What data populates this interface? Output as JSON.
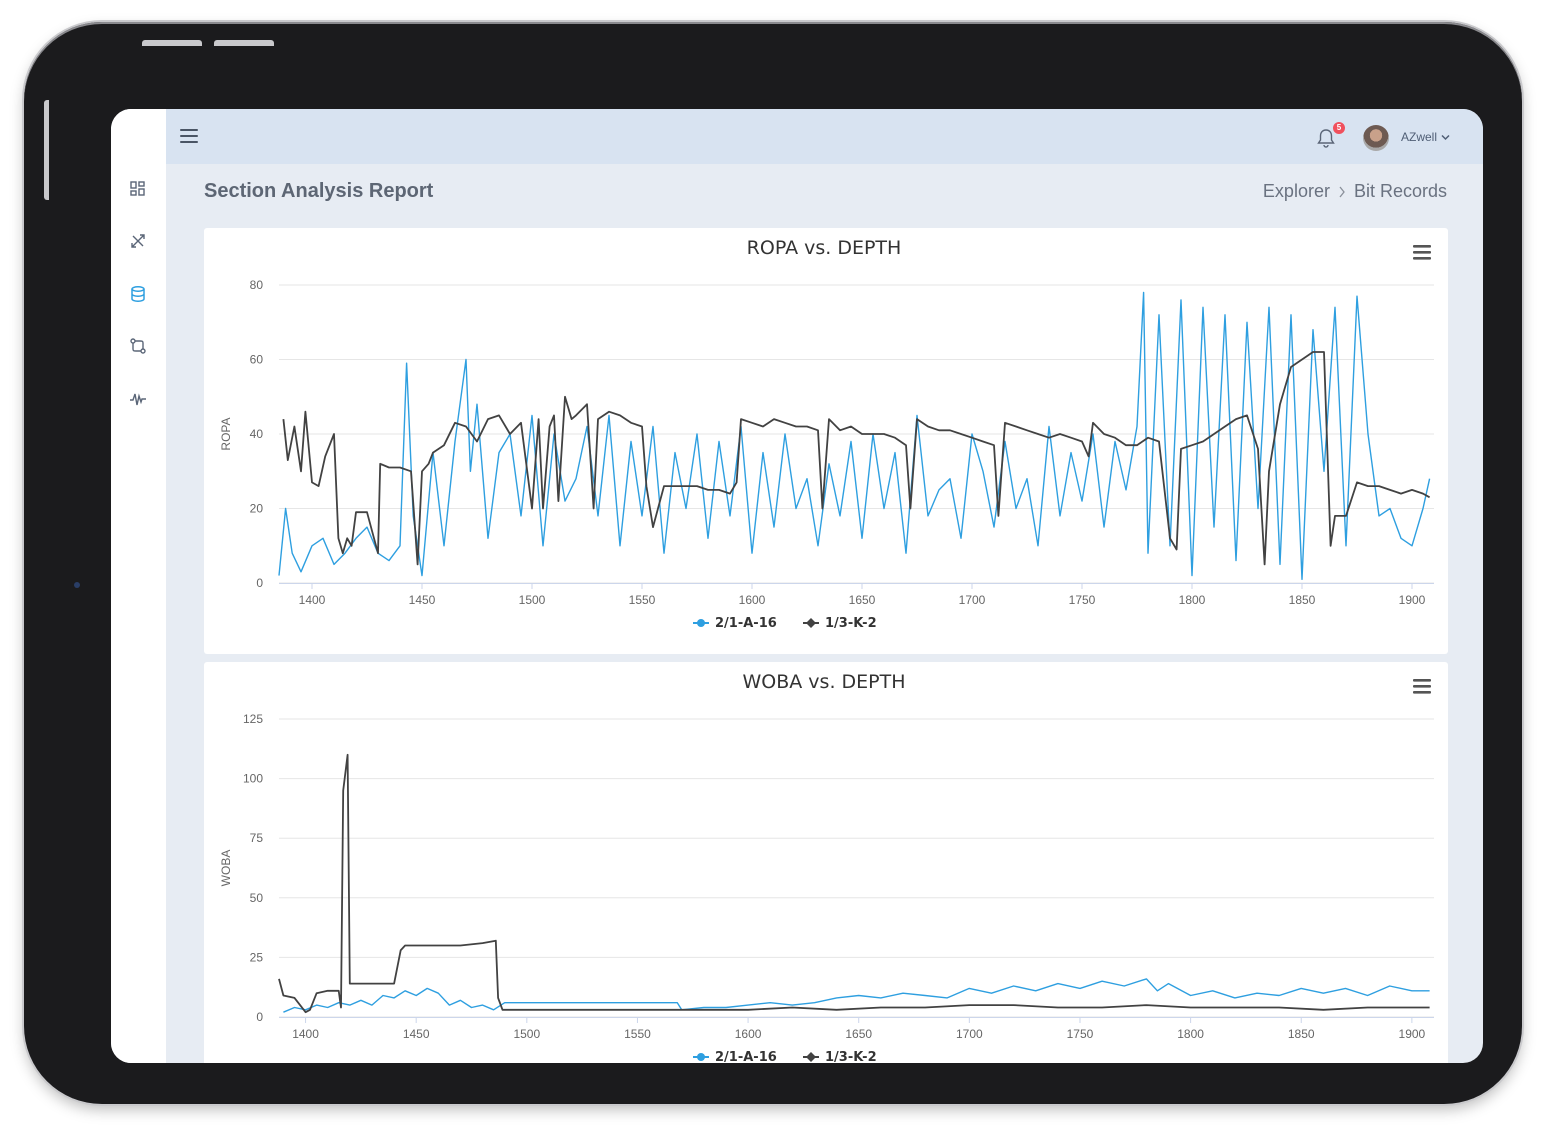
{
  "app": {
    "page_title": "Section Analysis Report",
    "breadcrumb": [
      "Explorer",
      "Bit Records"
    ],
    "user": "AZwell",
    "notifications_count": "5",
    "sidebar_icons": [
      "dashboard-icon",
      "tools-icon",
      "database-icon",
      "git-compare-icon",
      "activity-icon"
    ],
    "accent_color": "#2e9fe0",
    "badge_color": "#f0505d"
  },
  "chart_data": [
    {
      "type": "line",
      "title": "ROPA vs. DEPTH",
      "xlabel": "",
      "ylabel": "ROPA",
      "xlim": [
        1385,
        1910
      ],
      "ylim": [
        0,
        80
      ],
      "xticks": [
        1400,
        1450,
        1500,
        1550,
        1600,
        1650,
        1700,
        1750,
        1800,
        1850,
        1900
      ],
      "yticks": [
        0,
        20,
        40,
        60,
        80
      ],
      "legend_position": "bottom",
      "series": [
        {
          "name": "2/1-A-16",
          "color": "#2e9fe0",
          "x": [
            1385,
            1388,
            1391,
            1395,
            1400,
            1405,
            1410,
            1415,
            1420,
            1425,
            1430,
            1435,
            1440,
            1443,
            1446,
            1450,
            1455,
            1460,
            1465,
            1470,
            1472,
            1475,
            1480,
            1485,
            1490,
            1495,
            1500,
            1505,
            1510,
            1515,
            1520,
            1525,
            1530,
            1535,
            1540,
            1545,
            1550,
            1555,
            1560,
            1565,
            1570,
            1575,
            1580,
            1585,
            1590,
            1595,
            1600,
            1605,
            1610,
            1615,
            1620,
            1625,
            1630,
            1635,
            1640,
            1645,
            1650,
            1655,
            1660,
            1665,
            1670,
            1675,
            1680,
            1685,
            1690,
            1695,
            1700,
            1705,
            1710,
            1715,
            1720,
            1725,
            1730,
            1735,
            1740,
            1745,
            1750,
            1755,
            1760,
            1765,
            1770,
            1775,
            1778,
            1780,
            1785,
            1790,
            1795,
            1800,
            1805,
            1810,
            1815,
            1820,
            1825,
            1830,
            1835,
            1840,
            1845,
            1850,
            1855,
            1860,
            1865,
            1870,
            1875,
            1880,
            1885,
            1890,
            1895,
            1900,
            1905,
            1908
          ],
          "y": [
            2,
            20,
            8,
            3,
            10,
            12,
            5,
            8,
            12,
            15,
            8,
            6,
            10,
            59,
            18,
            2,
            35,
            10,
            38,
            60,
            30,
            48,
            12,
            35,
            40,
            18,
            45,
            10,
            40,
            22,
            28,
            42,
            18,
            45,
            10,
            38,
            18,
            42,
            8,
            35,
            20,
            40,
            12,
            38,
            18,
            42,
            8,
            35,
            15,
            40,
            20,
            28,
            10,
            32,
            18,
            38,
            12,
            40,
            20,
            35,
            8,
            45,
            18,
            25,
            28,
            12,
            40,
            30,
            15,
            38,
            20,
            28,
            10,
            42,
            18,
            35,
            22,
            40,
            15,
            38,
            25,
            42,
            78,
            8,
            72,
            10,
            76,
            2,
            74,
            15,
            72,
            6,
            70,
            20,
            74,
            5,
            72,
            1,
            68,
            30,
            74,
            10,
            77,
            40,
            18,
            20,
            12,
            10,
            20,
            28
          ]
        },
        {
          "name": "1/3-K-2",
          "color": "#424242",
          "x": [
            1387,
            1389,
            1392,
            1395,
            1397,
            1400,
            1403,
            1406,
            1410,
            1412,
            1414,
            1416,
            1418,
            1420,
            1425,
            1430,
            1431,
            1435,
            1440,
            1445,
            1448,
            1450,
            1453,
            1455,
            1460,
            1465,
            1470,
            1475,
            1480,
            1485,
            1490,
            1495,
            1500,
            1503,
            1505,
            1508,
            1510,
            1512,
            1515,
            1518,
            1520,
            1525,
            1528,
            1530,
            1535,
            1540,
            1545,
            1550,
            1552,
            1555,
            1560,
            1565,
            1570,
            1575,
            1580,
            1585,
            1590,
            1593,
            1595,
            1600,
            1605,
            1610,
            1615,
            1620,
            1625,
            1630,
            1632,
            1635,
            1640,
            1645,
            1650,
            1655,
            1660,
            1665,
            1670,
            1672,
            1675,
            1680,
            1685,
            1690,
            1695,
            1700,
            1705,
            1710,
            1712,
            1715,
            1720,
            1725,
            1730,
            1735,
            1740,
            1745,
            1750,
            1753,
            1755,
            1760,
            1765,
            1770,
            1775,
            1780,
            1785,
            1790,
            1793,
            1795,
            1800,
            1805,
            1810,
            1815,
            1820,
            1825,
            1830,
            1833,
            1835,
            1840,
            1845,
            1850,
            1855,
            1860,
            1863,
            1865,
            1870,
            1875,
            1880,
            1885,
            1890,
            1895,
            1900,
            1905,
            1908
          ],
          "y": [
            44,
            33,
            42,
            30,
            46,
            27,
            26,
            34,
            40,
            12,
            8,
            12,
            10,
            19,
            19,
            8,
            32,
            31,
            31,
            30,
            5,
            30,
            32,
            35,
            37,
            43,
            42,
            38,
            44,
            45,
            40,
            43,
            20,
            44,
            20,
            42,
            45,
            22,
            50,
            44,
            45,
            48,
            20,
            44,
            46,
            45,
            43,
            42,
            26,
            15,
            26,
            26,
            26,
            26,
            25,
            25,
            24,
            27,
            44,
            43,
            42,
            44,
            43,
            42,
            42,
            41,
            20,
            44,
            41,
            42,
            40,
            40,
            40,
            39,
            37,
            20,
            44,
            42,
            41,
            41,
            40,
            39,
            38,
            37,
            18,
            43,
            42,
            41,
            40,
            39,
            40,
            39,
            38,
            34,
            43,
            40,
            39,
            37,
            37,
            39,
            38,
            12,
            9,
            36,
            37,
            38,
            40,
            42,
            44,
            45,
            36,
            5,
            30,
            48,
            58,
            60,
            62,
            62,
            10,
            18,
            18,
            27,
            26,
            26,
            25,
            24,
            25,
            24,
            23
          ]
        }
      ]
    },
    {
      "type": "line",
      "title": "WOBA vs. DEPTH",
      "xlabel": "",
      "ylabel": "WOBA",
      "xlim": [
        1388,
        1910
      ],
      "ylim": [
        0,
        125
      ],
      "xticks": [
        1400,
        1450,
        1500,
        1550,
        1600,
        1650,
        1700,
        1750,
        1800,
        1850,
        1900
      ],
      "yticks": [
        0,
        25,
        50,
        75,
        100,
        125
      ],
      "legend_position": "bottom",
      "series": [
        {
          "name": "2/1-A-16",
          "color": "#2e9fe0",
          "x": [
            1390,
            1395,
            1400,
            1405,
            1410,
            1415,
            1420,
            1425,
            1430,
            1435,
            1440,
            1445,
            1450,
            1455,
            1460,
            1465,
            1470,
            1475,
            1480,
            1485,
            1490,
            1500,
            1520,
            1540,
            1560,
            1568,
            1570,
            1580,
            1590,
            1600,
            1610,
            1620,
            1630,
            1640,
            1650,
            1660,
            1670,
            1680,
            1690,
            1700,
            1710,
            1720,
            1730,
            1740,
            1750,
            1760,
            1770,
            1780,
            1785,
            1790,
            1800,
            1810,
            1820,
            1830,
            1840,
            1850,
            1860,
            1870,
            1880,
            1890,
            1900,
            1905,
            1908
          ],
          "y": [
            2,
            4,
            3,
            5,
            4,
            6,
            5,
            7,
            5,
            9,
            8,
            11,
            9,
            12,
            10,
            5,
            7,
            4,
            5,
            3,
            6,
            6,
            6,
            6,
            6,
            6,
            3,
            4,
            4,
            5,
            6,
            5,
            6,
            8,
            9,
            8,
            10,
            9,
            8,
            12,
            10,
            13,
            11,
            14,
            12,
            15,
            13,
            16,
            11,
            14,
            9,
            11,
            8,
            10,
            9,
            12,
            10,
            12,
            9,
            13,
            11,
            11,
            11
          ]
        },
        {
          "name": "1/3-K-2",
          "color": "#424242",
          "x": [
            1388,
            1390,
            1395,
            1400,
            1402,
            1405,
            1410,
            1415,
            1416,
            1417,
            1419,
            1420,
            1425,
            1430,
            1440,
            1443,
            1445,
            1450,
            1460,
            1470,
            1480,
            1486,
            1487,
            1489,
            1500,
            1520,
            1540,
            1560,
            1580,
            1600,
            1620,
            1640,
            1660,
            1680,
            1700,
            1720,
            1740,
            1760,
            1780,
            1800,
            1820,
            1840,
            1860,
            1880,
            1900,
            1908
          ],
          "y": [
            16,
            9,
            8,
            2,
            3,
            10,
            11,
            11,
            4,
            95,
            110,
            14,
            14,
            14,
            14,
            28,
            30,
            30,
            30,
            30,
            31,
            32,
            8,
            3,
            3,
            3,
            3,
            3,
            3,
            3,
            4,
            3,
            4,
            4,
            5,
            5,
            4,
            4,
            5,
            4,
            4,
            4,
            3,
            4,
            4,
            4
          ]
        }
      ]
    }
  ]
}
